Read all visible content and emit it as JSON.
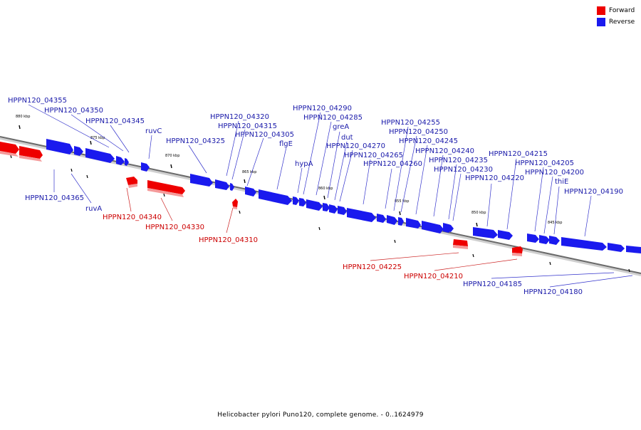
{
  "legend": {
    "forward_label": "Forward",
    "reverse_label": "Reverse",
    "forward_color": "#ee0000",
    "reverse_color": "#1a1aee"
  },
  "caption": "Helicobacter pylori Puno120, complete genome. - 0..1624979",
  "axis": {
    "ticks": [
      {
        "label": "880 kbp"
      },
      {
        "label": "875 kbp"
      },
      {
        "label": "870 kbp"
      },
      {
        "label": "865 kbp"
      },
      {
        "label": "860 kbp"
      },
      {
        "label": "855 kbp"
      },
      {
        "label": "850 kbp"
      },
      {
        "label": "845 kbp"
      }
    ]
  },
  "genes": [
    {
      "label": "HPPN120_04355",
      "strand": "reverse"
    },
    {
      "label": "HPPN120_04350",
      "strand": "reverse"
    },
    {
      "label": "HPPN120_04345",
      "strand": "reverse"
    },
    {
      "label": "ruvC",
      "strand": "reverse"
    },
    {
      "label": "HPPN120_04325",
      "strand": "reverse"
    },
    {
      "label": "HPPN120_04320",
      "strand": "reverse"
    },
    {
      "label": "HPPN120_04315",
      "strand": "reverse"
    },
    {
      "label": "HPPN120_04305",
      "strand": "reverse"
    },
    {
      "label": "flgE",
      "strand": "reverse"
    },
    {
      "label": "hypA",
      "strand": "reverse"
    },
    {
      "label": "HPPN120_04290",
      "strand": "reverse"
    },
    {
      "label": "HPPN120_04285",
      "strand": "reverse"
    },
    {
      "label": "greA",
      "strand": "reverse"
    },
    {
      "label": "dut",
      "strand": "reverse"
    },
    {
      "label": "HPPN120_04270",
      "strand": "reverse"
    },
    {
      "label": "HPPN120_04265",
      "strand": "reverse"
    },
    {
      "label": "HPPN120_04260",
      "strand": "reverse"
    },
    {
      "label": "HPPN120_04255",
      "strand": "reverse"
    },
    {
      "label": "HPPN120_04250",
      "strand": "reverse"
    },
    {
      "label": "HPPN120_04245",
      "strand": "reverse"
    },
    {
      "label": "HPPN120_04240",
      "strand": "reverse"
    },
    {
      "label": "HPPN120_04235",
      "strand": "reverse"
    },
    {
      "label": "HPPN120_04230",
      "strand": "reverse"
    },
    {
      "label": "HPPN120_04220",
      "strand": "reverse"
    },
    {
      "label": "HPPN120_04215",
      "strand": "reverse"
    },
    {
      "label": "HPPN120_04205",
      "strand": "reverse"
    },
    {
      "label": "HPPN120_04200",
      "strand": "reverse"
    },
    {
      "label": "thiE",
      "strand": "reverse"
    },
    {
      "label": "HPPN120_04190",
      "strand": "reverse"
    },
    {
      "label": "HPPN120_04365",
      "strand": "reverse"
    },
    {
      "label": "ruvA",
      "strand": "reverse"
    },
    {
      "label": "HPPN120_04340",
      "strand": "forward"
    },
    {
      "label": "HPPN120_04330",
      "strand": "forward"
    },
    {
      "label": "HPPN120_04310",
      "strand": "forward"
    },
    {
      "label": "HPPN120_04225",
      "strand": "forward"
    },
    {
      "label": "HPPN120_04210",
      "strand": "forward"
    },
    {
      "label": "HPPN120_04185",
      "strand": "reverse"
    },
    {
      "label": "HPPN120_04180",
      "strand": "reverse"
    }
  ]
}
